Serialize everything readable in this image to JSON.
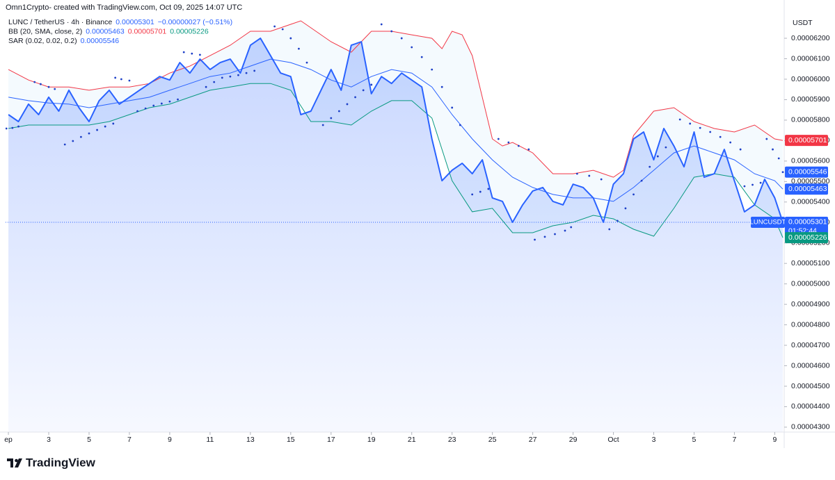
{
  "header": "Omn1Crypto- created with TradingView.com, Oct 09, 2025 14:07 UTC",
  "branding": "TradingView",
  "chart_data": {
    "type": "line",
    "legend": [
      {
        "label": "LUNC / TetherUS · 4h · Binance",
        "items": [
          {
            "text": "0.00005301",
            "color": "#2962ff"
          },
          {
            "text": "−0.00000027 (−0.51%)",
            "color": "#2962ff"
          }
        ]
      },
      {
        "label": "BB (20, SMA, close, 2)",
        "items": [
          {
            "text": "0.00005463",
            "color": "#2962ff"
          },
          {
            "text": "0.00005701",
            "color": "#f23645"
          },
          {
            "text": "0.00005226",
            "color": "#089981"
          }
        ]
      },
      {
        "label": "SAR (0.02, 0.02, 0.2)",
        "items": [
          {
            "text": "0.00005546",
            "color": "#2962ff"
          }
        ]
      }
    ],
    "axis_unit": "USDT",
    "grid": false,
    "xlim": [
      0.86,
      39.4
    ],
    "xticks": [
      {
        "value": 1,
        "label": "ep"
      },
      3,
      5,
      7,
      9,
      11,
      13,
      15,
      17,
      19,
      21,
      23,
      25,
      27,
      29,
      {
        "value": 31,
        "label": "Oct"
      },
      {
        "value": 33,
        "label": "3"
      },
      {
        "value": 35,
        "label": "5"
      },
      {
        "value": 37,
        "label": "7"
      },
      {
        "value": 39,
        "label": "9"
      }
    ],
    "ylim": [
      4.276e-05,
      6.319e-05
    ],
    "yticks": [
      {
        "value": 4.3e-05,
        "label": "0.00004300"
      },
      {
        "value": 4.4e-05,
        "label": "0.00004400"
      },
      {
        "value": 4.5e-05,
        "label": "0.00004500"
      },
      {
        "value": 4.6e-05,
        "label": "0.00004600"
      },
      {
        "value": 4.7e-05,
        "label": "0.00004700"
      },
      {
        "value": 4.8e-05,
        "label": "0.00004800"
      },
      {
        "value": 4.9e-05,
        "label": "0.00004900"
      },
      {
        "value": 5e-05,
        "label": "0.00005000"
      },
      {
        "value": 5.1e-05,
        "label": "0.00005100"
      },
      {
        "value": 5.2e-05,
        "label": "0.00005200"
      },
      {
        "value": 5.3e-05,
        "label": "0.00005300"
      },
      {
        "value": 5.4e-05,
        "label": "0.00005400"
      },
      {
        "value": 5.5e-05,
        "label": "0.00005500"
      },
      {
        "value": 5.6e-05,
        "label": "0.00005600"
      },
      {
        "value": 5.7e-05,
        "label": "0.00005700"
      },
      {
        "value": 5.8e-05,
        "label": "0.00005800"
      },
      {
        "value": 5.9e-05,
        "label": "0.00005900"
      },
      {
        "value": 6e-05,
        "label": "0.00006000"
      },
      {
        "value": 6.1e-05,
        "label": "0.00006100"
      },
      {
        "value": 6.2e-05,
        "label": "0.00006200"
      }
    ],
    "price": {
      "color": "#2962ff",
      "x": [
        1,
        1.5,
        2,
        2.5,
        3,
        3.5,
        4,
        4.5,
        5,
        5.5,
        6,
        6.5,
        7,
        7.5,
        8,
        8.5,
        9,
        9.5,
        10,
        10.5,
        11,
        11.5,
        12,
        12.5,
        13,
        13.5,
        14,
        14.5,
        15,
        15.5,
        16,
        16.5,
        17,
        17.5,
        18,
        18.5,
        19,
        19.5,
        20,
        20.5,
        21,
        21.5,
        22,
        22.5,
        23,
        23.5,
        24,
        24.5,
        25,
        25.5,
        26,
        26.5,
        27,
        27.5,
        28,
        28.5,
        29,
        29.5,
        30,
        30.5,
        31,
        31.5,
        32,
        32.5,
        33,
        33.5,
        34,
        34.5,
        35,
        35.5,
        36,
        36.5,
        37,
        37.5,
        38,
        38.5,
        39,
        39.4
      ],
      "values": [
        5.827e-05,
        5.793e-05,
        5.878e-05,
        5.827e-05,
        5.912e-05,
        5.844e-05,
        5.946e-05,
        5.861e-05,
        5.793e-05,
        5.895e-05,
        5.946e-05,
        5.878e-05,
        5.912e-05,
        5.946e-05,
        5.979e-05,
        6.013e-05,
        5.996e-05,
        6.081e-05,
        6.03e-05,
        6.098e-05,
        6.047e-05,
        6.081e-05,
        6.098e-05,
        6.03e-05,
        6.166e-05,
        6.2e-05,
        6.115e-05,
        6.03e-05,
        6.013e-05,
        5.827e-05,
        5.844e-05,
        5.946e-05,
        6.047e-05,
        5.946e-05,
        6.166e-05,
        6.183e-05,
        5.929e-05,
        6.013e-05,
        5.979e-05,
        6.03e-05,
        5.996e-05,
        5.962e-05,
        5.708e-05,
        5.504e-05,
        5.555e-05,
        5.589e-05,
        5.538e-05,
        5.606e-05,
        5.42e-05,
        5.403e-05,
        5.301e-05,
        5.386e-05,
        5.454e-05,
        5.471e-05,
        5.403e-05,
        5.386e-05,
        5.487e-05,
        5.471e-05,
        5.42e-05,
        5.301e-05,
        5.487e-05,
        5.538e-05,
        5.708e-05,
        5.742e-05,
        5.606e-05,
        5.759e-05,
        5.674e-05,
        5.572e-05,
        5.742e-05,
        5.521e-05,
        5.538e-05,
        5.657e-05,
        5.504e-05,
        5.352e-05,
        5.386e-05,
        5.511e-05,
        5.42e-05,
        5.301e-05
      ]
    },
    "bb_upper": {
      "color": "#f23645",
      "x": [
        1,
        2,
        3,
        4,
        5,
        6,
        7,
        8,
        9,
        10,
        11,
        12,
        13,
        14,
        15,
        15.5,
        16,
        17,
        18,
        19,
        20,
        21,
        22,
        22.5,
        23,
        23.5,
        24,
        25,
        25.5,
        26,
        27,
        28,
        29,
        30,
        31,
        31.5,
        32,
        33,
        34,
        35,
        36,
        37,
        38,
        39,
        39.4
      ],
      "values": [
        6.047e-05,
        5.996e-05,
        5.962e-05,
        5.962e-05,
        5.946e-05,
        5.962e-05,
        5.962e-05,
        5.979e-05,
        6.03e-05,
        6.064e-05,
        6.115e-05,
        6.166e-05,
        6.234e-05,
        6.234e-05,
        6.268e-05,
        6.285e-05,
        6.251e-05,
        6.183e-05,
        6.132e-05,
        6.234e-05,
        6.234e-05,
        6.217e-05,
        6.2e-05,
        6.149e-05,
        6.234e-05,
        6.217e-05,
        6.115e-05,
        5.708e-05,
        5.674e-05,
        5.691e-05,
        5.64e-05,
        5.538e-05,
        5.538e-05,
        5.555e-05,
        5.521e-05,
        5.555e-05,
        5.725e-05,
        5.844e-05,
        5.861e-05,
        5.793e-05,
        5.759e-05,
        5.742e-05,
        5.776e-05,
        5.708e-05,
        5.701e-05
      ]
    },
    "bb_basis": {
      "color": "#2962ff",
      "x": [
        1,
        2,
        3,
        4,
        5,
        6,
        7,
        8,
        9,
        10,
        11,
        12,
        13,
        14,
        15,
        16,
        17,
        18,
        19,
        20,
        21,
        22,
        23,
        24,
        25,
        26,
        27,
        28,
        29,
        30,
        31,
        32,
        33,
        34,
        35,
        36,
        37,
        38,
        39,
        39.4
      ],
      "values": [
        5.912e-05,
        5.895e-05,
        5.884e-05,
        5.878e-05,
        5.861e-05,
        5.878e-05,
        5.895e-05,
        5.912e-05,
        5.946e-05,
        5.979e-05,
        6.013e-05,
        6.03e-05,
        6.064e-05,
        6.098e-05,
        6.081e-05,
        6.047e-05,
        5.996e-05,
        5.962e-05,
        6.013e-05,
        6.047e-05,
        6.03e-05,
        5.962e-05,
        5.827e-05,
        5.708e-05,
        5.606e-05,
        5.521e-05,
        5.471e-05,
        5.437e-05,
        5.42e-05,
        5.42e-05,
        5.403e-05,
        5.471e-05,
        5.555e-05,
        5.64e-05,
        5.674e-05,
        5.64e-05,
        5.606e-05,
        5.538e-05,
        5.504e-05,
        5.463e-05
      ]
    },
    "bb_lower": {
      "color": "#089981",
      "x": [
        1,
        2,
        3,
        4,
        5,
        6,
        7,
        8,
        9,
        10,
        11,
        12,
        13,
        14,
        15,
        16,
        17,
        18,
        19,
        20,
        21,
        22,
        23,
        24,
        25,
        26,
        27,
        28,
        29,
        30,
        31,
        32,
        33,
        34,
        35,
        36,
        37,
        38,
        39,
        39.4
      ],
      "values": [
        5.759e-05,
        5.776e-05,
        5.776e-05,
        5.776e-05,
        5.776e-05,
        5.793e-05,
        5.827e-05,
        5.861e-05,
        5.878e-05,
        5.912e-05,
        5.946e-05,
        5.962e-05,
        5.979e-05,
        5.979e-05,
        5.946e-05,
        5.793e-05,
        5.793e-05,
        5.776e-05,
        5.844e-05,
        5.895e-05,
        5.895e-05,
        5.81e-05,
        5.504e-05,
        5.352e-05,
        5.369e-05,
        5.25e-05,
        5.25e-05,
        5.284e-05,
        5.301e-05,
        5.335e-05,
        5.318e-05,
        5.267e-05,
        5.233e-05,
        5.369e-05,
        5.521e-05,
        5.538e-05,
        5.521e-05,
        5.386e-05,
        5.318e-05,
        5.226e-05
      ]
    },
    "sar": {
      "color": "#1e40c8",
      "x": [
        0.9,
        1.2,
        1.5,
        2.3,
        2.6,
        3,
        3.3,
        3.8,
        4.2,
        4.6,
        5,
        5.4,
        5.8,
        6.2,
        6.3,
        6.6,
        7,
        7.4,
        7.8,
        8.2,
        8.6,
        9,
        9.4,
        9.7,
        10.1,
        10.5,
        10.8,
        11.2,
        11.6,
        12,
        12.4,
        12.8,
        13.2,
        14.2,
        14.6,
        15,
        15.4,
        15.8,
        16.6,
        17,
        17.4,
        17.8,
        18.2,
        18.6,
        19,
        19.5,
        20,
        20.5,
        21,
        21.5,
        22,
        22.5,
        23,
        23.4,
        24,
        24.4,
        24.8,
        25.3,
        25.8,
        26.3,
        26.8,
        27.1,
        27.6,
        28.1,
        28.6,
        28.9,
        29.2,
        29.8,
        30.4,
        30.8,
        31.2,
        31.6,
        32,
        32.4,
        32.8,
        33.2,
        33.6,
        34.3,
        34.8,
        35.3,
        35.8,
        36.3,
        36.8,
        37.3,
        37.5,
        37.9,
        38.3,
        38.6,
        38.9,
        39.2,
        39.4
      ],
      "values": [
        5.759e-05,
        5.762e-05,
        5.769e-05,
        5.986e-05,
        5.976e-05,
        5.962e-05,
        5.952e-05,
        5.681e-05,
        5.698e-05,
        5.718e-05,
        5.735e-05,
        5.752e-05,
        5.769e-05,
        5.783e-05,
        6.007e-05,
        6e-05,
        5.993e-05,
        5.844e-05,
        5.857e-05,
        5.871e-05,
        5.881e-05,
        5.891e-05,
        5.901e-05,
        6.132e-05,
        6.125e-05,
        6.119e-05,
        5.962e-05,
        5.986e-05,
        6.007e-05,
        6.013e-05,
        6.02e-05,
        6.03e-05,
        6.041e-05,
        6.258e-05,
        6.244e-05,
        6.2e-05,
        6.149e-05,
        6.081e-05,
        5.776e-05,
        5.81e-05,
        5.844e-05,
        5.878e-05,
        5.912e-05,
        5.946e-05,
        5.973e-05,
        6.268e-05,
        6.234e-05,
        6.2e-05,
        6.156e-05,
        6.108e-05,
        6.047e-05,
        5.962e-05,
        5.861e-05,
        5.776e-05,
        5.437e-05,
        5.45e-05,
        5.464e-05,
        5.708e-05,
        5.691e-05,
        5.674e-05,
        5.657e-05,
        5.216e-05,
        5.23e-05,
        5.243e-05,
        5.26e-05,
        5.277e-05,
        5.538e-05,
        5.528e-05,
        5.511e-05,
        5.267e-05,
        5.308e-05,
        5.369e-05,
        5.437e-05,
        5.504e-05,
        5.572e-05,
        5.623e-05,
        5.667e-05,
        5.803e-05,
        5.783e-05,
        5.762e-05,
        5.742e-05,
        5.718e-05,
        5.691e-05,
        5.657e-05,
        5.477e-05,
        5.484e-05,
        5.494e-05,
        5.708e-05,
        5.657e-05,
        5.613e-05,
        5.546e-05
      ]
    },
    "price_tags": [
      {
        "value": 5.701e-05,
        "color": "#f23645"
      },
      {
        "value": 5.546e-05,
        "color": "#2962ff"
      },
      {
        "value": 5.463e-05,
        "color": "#2962ff"
      },
      {
        "value": 5.301e-05,
        "color": "#2962ff",
        "symbol": "LUNCUSDT",
        "countdown": "01:52:44"
      },
      {
        "value": 5.226e-05,
        "color": "#089981"
      }
    ]
  }
}
